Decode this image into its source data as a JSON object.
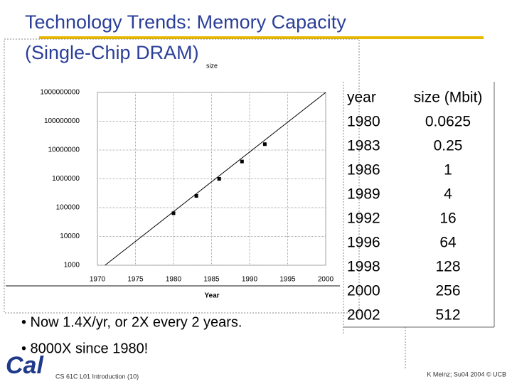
{
  "slide": {
    "title_line1": "Technology Trends: Memory Capacity",
    "title_line2": "(Single-Chip DRAM)",
    "bullets": [
      "• Now 1.4X/yr, or 2X every 2 years.",
      "• 8000X since 1980!"
    ],
    "footer_left": "CS 61C L01 Introduction (10)",
    "footer_right": "K Meinz; Su04 2004 © UCB",
    "logo": "Cal"
  },
  "chart_data": {
    "type": "scatter",
    "ylabel": "size",
    "xlabel": "Year",
    "yscale": "log",
    "grid": true,
    "xlim": [
      1970,
      2000
    ],
    "xticks": [
      1970,
      1975,
      1980,
      1985,
      1990,
      1995,
      2000
    ],
    "ylim": [
      1000,
      1000000000
    ],
    "yticks": [
      1000,
      10000,
      100000,
      1000000,
      10000000,
      100000000,
      1000000000
    ],
    "series": [
      {
        "type": "scatter",
        "color": "#000000",
        "x": [
          1980,
          1983,
          1986,
          1989,
          1992
        ],
        "values": [
          64000,
          256000,
          1000000,
          4000000,
          16000000
        ]
      },
      {
        "type": "line",
        "color": "#000000",
        "x": [
          1971,
          2000
        ],
        "values": [
          1000,
          1000000000
        ]
      }
    ]
  },
  "table": {
    "header": [
      "year",
      "size (Mbit)"
    ],
    "rows": [
      [
        "1980",
        "0.0625"
      ],
      [
        "1983",
        "0.25"
      ],
      [
        "1986",
        "1"
      ],
      [
        "1989",
        "4"
      ],
      [
        "1992",
        "16"
      ],
      [
        "1996",
        "64"
      ],
      [
        "1998",
        "128"
      ],
      [
        "2000",
        "256"
      ],
      [
        "2002",
        "512"
      ]
    ]
  }
}
